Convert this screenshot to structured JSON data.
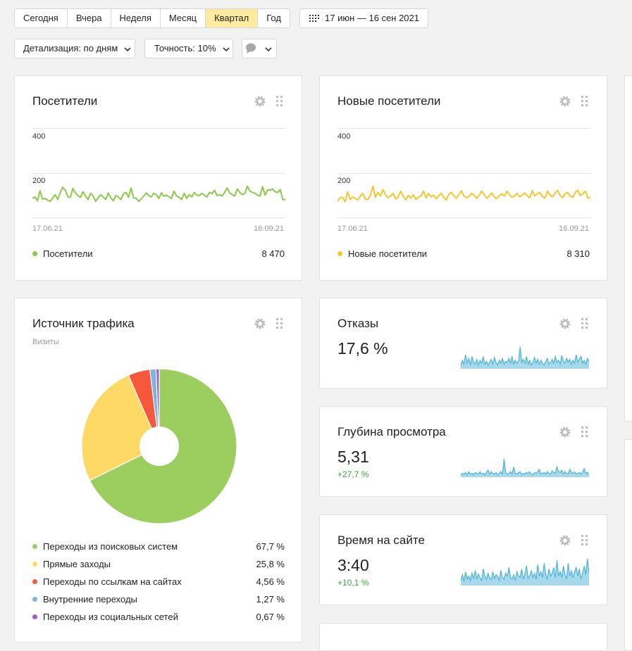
{
  "periods": [
    "Сегодня",
    "Вчера",
    "Неделя",
    "Месяц",
    "Квартал",
    "Год"
  ],
  "date_range": "17 июн — 16 сен 2021",
  "detail_label": "Детализация: по дням",
  "accuracy_label": "Точность: 10%",
  "visitors": {
    "title": "Посетители",
    "legend": "Посетители",
    "total": "8 470",
    "ticks": [
      "400",
      "200"
    ],
    "start": "17.06.21",
    "end": "16.09.21",
    "color": "#8cc84b"
  },
  "new_visitors": {
    "title": "Новые посетители",
    "legend": "Новые посетители",
    "total": "8 310",
    "ticks": [
      "400",
      "200"
    ],
    "start": "17.06.21",
    "end": "16.09.21",
    "color": "#f7c52e"
  },
  "traffic": {
    "title": "Источник трафика",
    "subtitle": "Визиты",
    "items": [
      {
        "label": "Переходы из поисковых систем",
        "value": "67,7 %",
        "color": "#9ccd5f"
      },
      {
        "label": "Прямые заходы",
        "value": "25,8 %",
        "color": "#ffd966"
      },
      {
        "label": "Переходы по ссылкам на сайтах",
        "value": "4,56 %",
        "color": "#f7583b"
      },
      {
        "label": "Внутренние переходы",
        "value": "1,27 %",
        "color": "#7eb3e6"
      },
      {
        "label": "Переходы из социальных сетей",
        "value": "0,67 %",
        "color": "#a15fc4"
      }
    ]
  },
  "bounces": {
    "title": "Отказы",
    "value": "17,6 %"
  },
  "depth": {
    "title": "Глубина просмотра",
    "value": "5,31",
    "delta": "+27,7 %"
  },
  "time": {
    "title": "Время на сайте",
    "value": "3:40",
    "delta": "+10,1 %"
  },
  "chart_data": [
    {
      "type": "line",
      "title": "Посетители",
      "series": [
        {
          "name": "Посетители",
          "values": [
            85,
            92,
            75,
            120,
            82,
            85,
            78,
            72,
            86,
            102,
            80,
            112,
            135,
            122,
            92,
            90,
            130,
            110,
            98,
            90,
            115,
            96,
            80,
            108,
            96,
            72,
            88,
            102,
            92,
            80,
            110,
            88,
            75,
            98,
            92,
            80,
            106,
            112,
            90,
            132,
            88,
            85,
            72,
            82,
            96,
            110,
            98,
            92,
            108,
            102,
            85,
            110,
            95,
            100,
            92,
            85,
            118,
            96,
            90,
            80,
            108,
            86,
            102,
            92,
            112,
            100,
            98,
            108,
            100,
            92,
            112,
            106,
            122,
            98,
            102,
            96,
            112,
            132,
            110,
            102,
            96,
            128,
            112,
            102,
            108,
            140,
            118,
            112,
            108,
            100,
            96,
            138,
            100,
            124,
            122,
            128,
            115,
            112,
            125,
            80,
            80
          ]
        }
      ],
      "ylim": [
        0,
        400
      ],
      "xlabel": "",
      "ylabel": "",
      "start": "17.06.21",
      "end": "16.09.21"
    },
    {
      "type": "line",
      "title": "Новые посетители",
      "series": [
        {
          "name": "Новые посетители",
          "values": [
            72,
            88,
            90,
            70,
            115,
            80,
            92,
            85,
            78,
            96,
            108,
            82,
            80,
            100,
            140,
            90,
            112,
            96,
            125,
            102,
            88,
            96,
            108,
            82,
            92,
            118,
            95,
            78,
            100,
            86,
            102,
            80,
            92,
            95,
            118,
            88,
            108,
            92,
            100,
            84,
            96,
            108,
            90,
            78,
            104,
            112,
            98,
            86,
            102,
            120,
            96,
            88,
            94,
            108,
            100,
            86,
            98,
            118,
            102,
            86,
            96,
            110,
            92,
            84,
            98,
            106,
            96,
            118,
            102,
            90,
            96,
            108,
            92,
            100,
            110,
            98,
            88,
            120,
            96,
            106,
            112,
            94,
            86,
            118,
            102,
            92,
            108,
            122,
            100,
            88,
            106,
            112,
            96,
            90,
            112,
            122,
            98,
            106,
            118,
            88,
            88
          ]
        }
      ],
      "ylim": [
        0,
        400
      ],
      "xlabel": "",
      "ylabel": "",
      "start": "17.06.21",
      "end": "16.09.21"
    },
    {
      "type": "pie",
      "title": "Источник трафика",
      "categories": [
        "Переходы из поисковых систем",
        "Прямые заходы",
        "Переходы по ссылкам на сайтах",
        "Внутренние переходы",
        "Переходы из социальных сетей"
      ],
      "values": [
        67.7,
        25.8,
        4.56,
        1.27,
        0.67
      ]
    },
    {
      "type": "area",
      "title": "Отказы",
      "series": [
        {
          "name": "Отказы",
          "values": [
            3,
            8,
            4,
            14,
            5,
            10,
            3,
            12,
            6,
            4,
            9,
            3,
            8,
            5,
            12,
            4,
            7,
            3,
            6,
            9,
            4,
            11,
            6,
            3,
            8,
            5,
            10,
            4,
            7,
            6,
            10,
            5,
            12,
            4,
            8,
            5,
            7,
            22,
            6,
            9,
            5,
            12,
            4,
            8,
            3,
            6,
            11,
            5,
            9,
            4,
            8,
            5,
            3,
            7,
            10,
            4,
            6,
            9,
            5,
            12,
            6,
            8,
            4,
            13,
            7,
            5,
            10,
            6,
            9,
            4,
            8,
            5,
            14,
            6,
            9,
            12,
            5,
            8,
            4,
            10,
            7
          ]
        }
      ]
    },
    {
      "type": "area",
      "title": "Глубина просмотра",
      "series": [
        {
          "name": "Глубина просмотра",
          "values": [
            2,
            4,
            3,
            5,
            2,
            6,
            3,
            4,
            2,
            5,
            4,
            3,
            6,
            3,
            4,
            2,
            5,
            8,
            3,
            6,
            4,
            3,
            5,
            2,
            4,
            6,
            3,
            22,
            5,
            3,
            4,
            6,
            3,
            12,
            4,
            3,
            5,
            6,
            2,
            4,
            3,
            5,
            4,
            6,
            3,
            2,
            5,
            4,
            6,
            9,
            3,
            4,
            5,
            3,
            6,
            4,
            3,
            7,
            5,
            4,
            12,
            6,
            5,
            8,
            3,
            6,
            4,
            3,
            9,
            5,
            4,
            6,
            3,
            4,
            5,
            3,
            6,
            10,
            4,
            5,
            3
          ]
        }
      ]
    },
    {
      "type": "area",
      "title": "Время на сайте",
      "series": [
        {
          "name": "Время на сайте",
          "values": [
            6,
            14,
            5,
            18,
            8,
            12,
            6,
            16,
            9,
            20,
            8,
            15,
            10,
            6,
            22,
            12,
            8,
            16,
            10,
            7,
            18,
            9,
            14,
            12,
            6,
            20,
            10,
            8,
            16,
            12,
            24,
            10,
            8,
            14,
            6,
            18,
            12,
            10,
            22,
            8,
            15,
            26,
            9,
            12,
            20,
            10,
            16,
            8,
            28,
            12,
            18,
            10,
            30,
            14,
            8,
            22,
            12,
            16,
            24,
            10,
            34,
            12,
            18,
            10,
            26,
            14,
            8,
            30,
            12,
            20,
            10,
            18,
            24,
            12,
            22,
            8,
            16,
            26,
            14,
            36,
            16
          ]
        }
      ]
    }
  ]
}
